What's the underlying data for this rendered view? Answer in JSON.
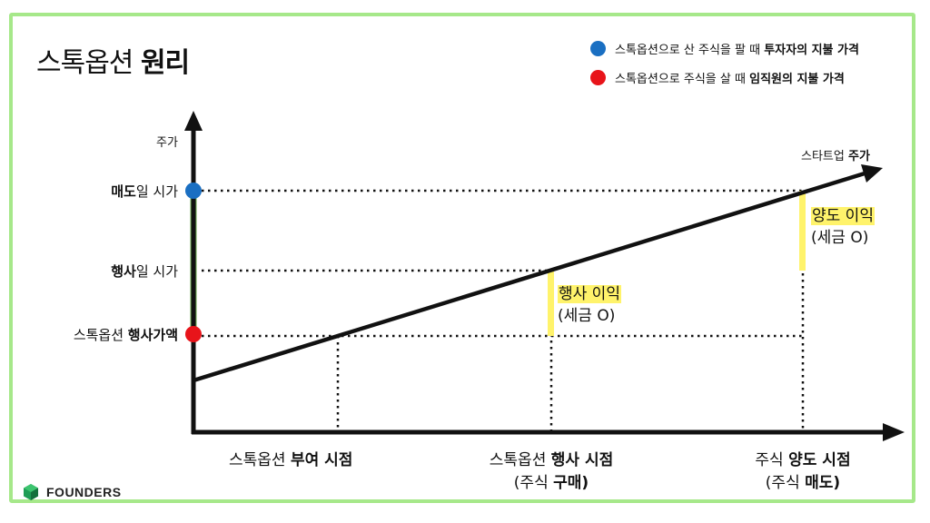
{
  "title": {
    "regular": "스톡옵션",
    "bold": "원리"
  },
  "legend": [
    {
      "text": "스톡옵션으로 산 주식을 팔 때",
      "bold": "투자자의 지불 가격",
      "color": "#1a6fc2"
    },
    {
      "text": "스톡옵션으로 주식을 살 때",
      "bold": "임직원의 지불 가격",
      "color": "#e8141a"
    }
  ],
  "axes": {
    "y_label": "주가",
    "line_label": {
      "regular": "스타트업",
      "bold": "주가"
    }
  },
  "y_levels": [
    {
      "bold": "매도",
      "text": "일 시가"
    },
    {
      "bold": "행사",
      "text": "일 시가"
    },
    {
      "text": "스톡옵션",
      "bold": "행사가액"
    }
  ],
  "x_points": [
    {
      "line1_regular": "스톡옵션",
      "line1_bold": "부여 시점",
      "line2_regular": "",
      "line2_bold": ""
    },
    {
      "line1_regular": "스톡옵션",
      "line1_bold": "행사 시점",
      "line2_regular": "(주식",
      "line2_bold": "구매)"
    },
    {
      "line1_regular": "주식",
      "line1_bold": "양도 시점",
      "line2_regular": "(주식",
      "line2_bold": "매도)"
    }
  ],
  "notes": [
    {
      "title": "행사 이익",
      "sub": "(세금 O)"
    },
    {
      "title": "양도 이익",
      "sub": "(세금 O)"
    }
  ],
  "brand": "FOUNDERS",
  "colors": {
    "frame": "#a6e88a",
    "bar": "#6aaa4e",
    "highlight": "#fff36b"
  }
}
